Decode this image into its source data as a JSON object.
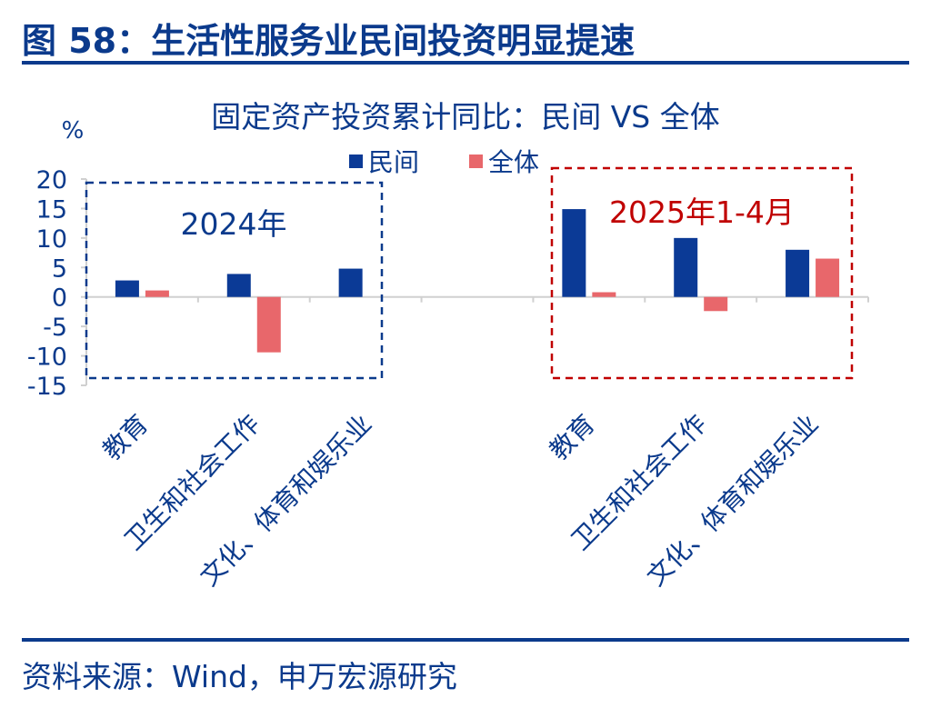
{
  "figure": {
    "title": "图 58：生活性服务业民间投资明显提速",
    "source": "资料来源：Wind，申万宏源研究"
  },
  "chart_data": {
    "type": "bar",
    "title": "固定资产投资累计同比：民间 VS 全体",
    "ylabel": "%",
    "ylim": [
      -15,
      20
    ],
    "yticks": [
      20,
      15,
      10,
      5,
      0,
      -5,
      -10,
      -15
    ],
    "grid": false,
    "legend_position": "top",
    "categories": [
      "教育",
      "卫生和社会工作",
      "文化、体育和娱乐业",
      "",
      "教育",
      "卫生和社会工作",
      "文化、体育和娱乐业"
    ],
    "series": [
      {
        "name": "民间",
        "color": "#0b3a96",
        "values": [
          2.8,
          3.9,
          4.8,
          null,
          14.9,
          10.0,
          8.0
        ]
      },
      {
        "name": "全体",
        "color": "#e8676b",
        "values": [
          1.1,
          -9.4,
          null,
          null,
          0.8,
          -2.4,
          6.5
        ]
      }
    ],
    "annotations": [
      {
        "text": "2024年",
        "color": "#0b3a8c"
      },
      {
        "text": "2025年1-4月",
        "color": "#c00000"
      }
    ]
  }
}
